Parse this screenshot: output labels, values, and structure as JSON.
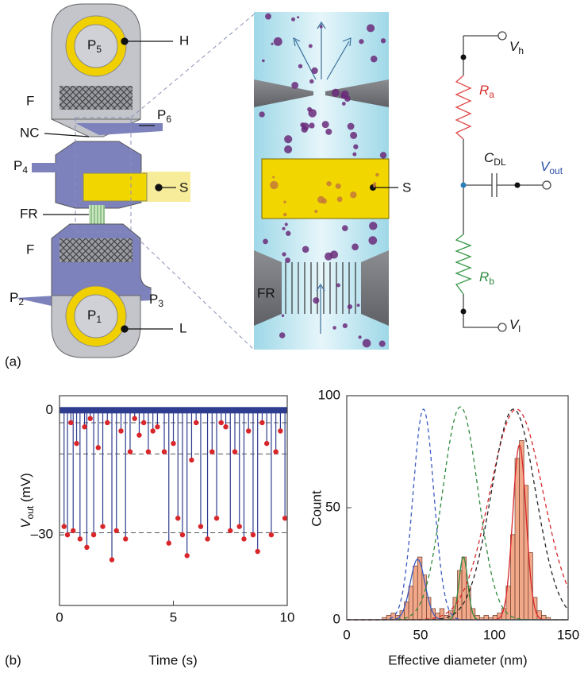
{
  "figure": {
    "panel_a": "(a)",
    "panel_b": "(b)"
  },
  "device": {
    "p5": {
      "base": "P",
      "sub": "5"
    },
    "h": "H",
    "f_top": "F",
    "p6": {
      "base": "P",
      "sub": "6"
    },
    "nc": "NC",
    "p4": {
      "base": "P",
      "sub": "4"
    },
    "s": "S",
    "fr": "FR",
    "f_bottom": "F",
    "p2": {
      "base": "P",
      "sub": "2"
    },
    "p3": {
      "base": "P",
      "sub": "3"
    },
    "p1": {
      "base": "P",
      "sub": "1"
    },
    "l": "L"
  },
  "zoom": {
    "s": "S",
    "fr": "FR"
  },
  "circuit": {
    "vh": {
      "base": "V",
      "sub": "h"
    },
    "ra": {
      "base": "R",
      "sub": "a"
    },
    "cdl": {
      "base": "C",
      "sub": "DL"
    },
    "vout": {
      "base": "V",
      "sub": "out"
    },
    "rb": {
      "base": "R",
      "sub": "b"
    },
    "vl": {
      "base": "V",
      "sub": "l"
    }
  },
  "chart_data": [
    {
      "type": "scatter",
      "stems": true,
      "x_label": "Time (s)",
      "y_label": {
        "base": "V",
        "sub": "out",
        "rest": " (mV)"
      },
      "xlim": [
        0,
        10
      ],
      "ylim": [
        -47,
        3.5
      ],
      "xticks": [
        0,
        5,
        10
      ],
      "yticks": [
        0,
        {
          "value": -30,
          "label": "–30"
        }
      ],
      "reference_lines": [
        -3,
        -10.5,
        -29.5
      ],
      "line_color": "#2e3d8f",
      "point_color": "#d9262a",
      "x": [
        0.2,
        0.35,
        0.5,
        0.6,
        0.75,
        0.9,
        1.1,
        1.2,
        1.35,
        1.5,
        1.7,
        1.9,
        2.1,
        2.3,
        2.5,
        2.7,
        2.9,
        3.1,
        3.3,
        3.5,
        3.7,
        3.9,
        4.1,
        4.3,
        4.6,
        4.8,
        5.0,
        5.2,
        5.4,
        5.6,
        5.8,
        6.0,
        6.2,
        6.5,
        6.7,
        6.9,
        7.1,
        7.3,
        7.5,
        7.7,
        7.9,
        8.1,
        8.3,
        8.5,
        8.7,
        8.9,
        9.1,
        9.3,
        9.5,
        9.7,
        9.9
      ],
      "values": [
        -28,
        -30,
        -3,
        -29,
        -8,
        -31,
        -4,
        -33,
        -2,
        -30,
        -9,
        -28,
        -3,
        -36,
        -29,
        -5,
        -31,
        -10,
        -2,
        -6,
        -3,
        -10,
        -5,
        -4,
        -10,
        -32,
        -8,
        -26,
        -30,
        -35,
        -12,
        -3,
        -28,
        -31,
        -10,
        -26,
        -3,
        -4,
        -29,
        -10,
        -28,
        -31,
        -5,
        -30,
        -34,
        -3,
        -8,
        -30,
        -10,
        -5,
        -26
      ]
    },
    {
      "type": "histogram",
      "x_label": "Effective diameter (nm)",
      "y_label": "Count",
      "xlim": [
        0,
        150
      ],
      "ylim": [
        0,
        100
      ],
      "xticks": [
        0,
        50,
        100,
        150
      ],
      "yticks": [
        0,
        50,
        100
      ],
      "color": "#f2a98a",
      "bins": [
        24,
        27,
        30,
        33,
        36,
        39,
        42,
        45,
        48,
        51,
        54,
        57,
        60,
        63,
        66,
        69,
        72,
        75,
        78,
        81,
        84,
        87,
        90,
        93,
        96,
        99,
        102,
        105,
        108,
        111,
        114,
        117,
        120,
        123,
        126,
        129,
        132,
        135,
        138
      ],
      "values": [
        1,
        2,
        3,
        2,
        4,
        8,
        15,
        24,
        28,
        20,
        10,
        5,
        3,
        5,
        2,
        4,
        10,
        22,
        28,
        15,
        5,
        2,
        1,
        2,
        1,
        2,
        3,
        5,
        15,
        38,
        72,
        80,
        60,
        30,
        10,
        4,
        2,
        1
      ],
      "fits": [
        {
          "color": "#3b5bbf",
          "style": "solid",
          "center": 48,
          "width": 5,
          "peak": 27
        },
        {
          "color": "#2e8a3e",
          "style": "solid",
          "center": 79,
          "width": 3,
          "peak": 28
        },
        {
          "color": "#d9262a",
          "style": "solid",
          "center": 117,
          "width": 4.5,
          "peak": 78
        },
        {
          "color": "#3b5bbf",
          "style": "dashed",
          "center": 52,
          "width": 7,
          "peak": 94
        },
        {
          "color": "#2e8a3e",
          "style": "dashed",
          "center": 77,
          "width": 12,
          "peak": 95
        },
        {
          "color": "#d9262a",
          "style": "dashed",
          "center": 115,
          "width": 18,
          "peak": 94
        },
        {
          "color": "#222222",
          "style": "dashed",
          "center": 113,
          "width": 15,
          "peak": 94
        }
      ]
    }
  ]
}
